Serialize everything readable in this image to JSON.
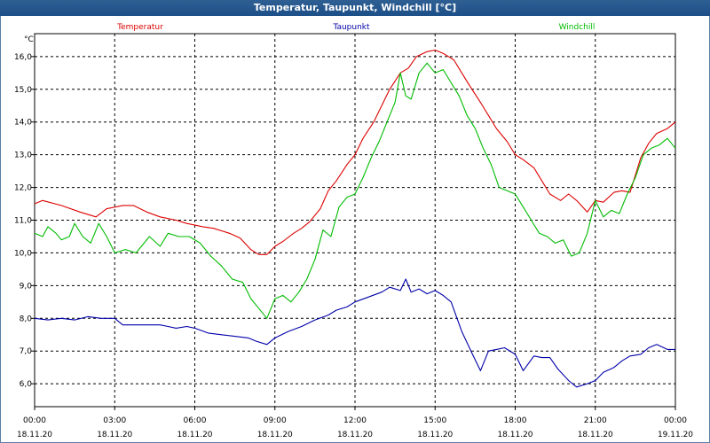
{
  "window": {
    "title": "Temperatur, Taupunkt, Windchill [°C]"
  },
  "chart_data": {
    "type": "line",
    "title": "Temperatur, Taupunkt, Windchill [°C]",
    "ylabel": "°C",
    "xlabel": "",
    "ylim": [
      5.3,
      16.7
    ],
    "xlim": [
      0,
      24
    ],
    "grid": true,
    "legend_position": "top",
    "yticks": [
      6.0,
      7.0,
      8.0,
      9.0,
      10.0,
      11.0,
      12.0,
      13.0,
      14.0,
      15.0,
      16.0
    ],
    "yticklabels": [
      "6,0",
      "7,0",
      "8,0",
      "9,0",
      "10,0",
      "11,0",
      "12,0",
      "13,0",
      "14,0",
      "15,0",
      "16,0"
    ],
    "xticks": [
      {
        "x": 0,
        "time": "00:00",
        "date": "18.11.20"
      },
      {
        "x": 3,
        "time": "03:00",
        "date": "18.11.20"
      },
      {
        "x": 6,
        "time": "06:00",
        "date": "18.11.20"
      },
      {
        "x": 9,
        "time": "09:00",
        "date": "18.11.20"
      },
      {
        "x": 12,
        "time": "12:00",
        "date": "18.11.20"
      },
      {
        "x": 15,
        "time": "15:00",
        "date": "18.11.20"
      },
      {
        "x": 18,
        "time": "18:00",
        "date": "18.11.20"
      },
      {
        "x": 21,
        "time": "21:00",
        "date": "18.11.20"
      },
      {
        "x": 24,
        "time": "00:00",
        "date": "19.11.20"
      }
    ],
    "series": [
      {
        "name": "Temperatur",
        "color": "#dd0000",
        "x": [
          0,
          0.3,
          1,
          1.7,
          2.3,
          2.7,
          3.3,
          3.7,
          4.2,
          4.7,
          5.3,
          5.7,
          6.3,
          6.7,
          7.3,
          7.7,
          8.1,
          8.4,
          8.7,
          9.0,
          9.3,
          9.7,
          10.0,
          10.3,
          10.7,
          11.0,
          11.3,
          11.7,
          12.0,
          12.3,
          12.7,
          13.0,
          13.3,
          13.7,
          14.0,
          14.3,
          14.7,
          15.0,
          15.3,
          15.7,
          16.0,
          16.3,
          16.7,
          17.0,
          17.3,
          17.7,
          18.0,
          18.3,
          18.7,
          19.0,
          19.3,
          19.7,
          20.0,
          20.3,
          20.7,
          21.0,
          21.3,
          21.7,
          22.0,
          22.3,
          22.7,
          23.0,
          23.3,
          23.7,
          24.0
        ],
        "values": [
          11.5,
          11.6,
          11.45,
          11.25,
          11.1,
          11.35,
          11.45,
          11.45,
          11.25,
          11.1,
          11.0,
          10.9,
          10.8,
          10.75,
          10.6,
          10.45,
          10.1,
          9.95,
          9.95,
          10.2,
          10.35,
          10.6,
          10.75,
          10.95,
          11.35,
          11.9,
          12.2,
          12.7,
          13.0,
          13.5,
          14.0,
          14.5,
          15.0,
          15.5,
          15.65,
          16.0,
          16.15,
          16.2,
          16.1,
          15.9,
          15.5,
          15.1,
          14.6,
          14.2,
          13.8,
          13.4,
          13.0,
          12.85,
          12.6,
          12.2,
          11.8,
          11.6,
          11.8,
          11.6,
          11.25,
          11.6,
          11.55,
          11.85,
          11.9,
          11.85,
          12.9,
          13.35,
          13.65,
          13.8,
          14.0
        ]
      },
      {
        "name": "Taupunkt",
        "color": "#0000aa",
        "x": [
          0,
          0.5,
          1,
          1.5,
          2,
          2.5,
          3,
          3.3,
          3.7,
          4.2,
          4.7,
          5.0,
          5.3,
          5.7,
          6.0,
          6.5,
          7.0,
          7.5,
          8.0,
          8.3,
          8.7,
          9.0,
          9.5,
          10.0,
          10.5,
          11.0,
          11.3,
          11.7,
          12.0,
          12.5,
          13.0,
          13.3,
          13.7,
          13.9,
          14.1,
          14.4,
          14.7,
          15.0,
          15.3,
          15.6,
          16.0,
          16.4,
          16.7,
          17.0,
          17.3,
          17.6,
          18.0,
          18.3,
          18.7,
          19.0,
          19.3,
          19.6,
          20.0,
          20.3,
          20.7,
          21.0,
          21.3,
          21.7,
          22.0,
          22.3,
          22.7,
          23.0,
          23.3,
          23.7,
          24.0
        ],
        "values": [
          8.0,
          7.95,
          8.0,
          7.95,
          8.05,
          8.0,
          8.0,
          7.8,
          7.8,
          7.8,
          7.8,
          7.75,
          7.7,
          7.75,
          7.7,
          7.55,
          7.5,
          7.45,
          7.4,
          7.3,
          7.2,
          7.4,
          7.6,
          7.75,
          7.95,
          8.1,
          8.25,
          8.35,
          8.5,
          8.65,
          8.8,
          8.95,
          8.85,
          9.2,
          8.8,
          8.9,
          8.75,
          8.85,
          8.7,
          8.5,
          7.6,
          6.9,
          6.4,
          7.0,
          7.05,
          7.1,
          6.9,
          6.4,
          6.85,
          6.8,
          6.8,
          6.45,
          6.1,
          5.9,
          6.0,
          6.1,
          6.35,
          6.5,
          6.7,
          6.85,
          6.9,
          7.1,
          7.2,
          7.05,
          7.05
        ]
      },
      {
        "name": "Windchill",
        "color": "#00bb00",
        "x": [
          0,
          0.3,
          0.5,
          0.8,
          1.0,
          1.3,
          1.5,
          1.8,
          2.1,
          2.4,
          2.7,
          3.0,
          3.4,
          3.8,
          4.3,
          4.7,
          5.0,
          5.4,
          5.8,
          6.2,
          6.6,
          7.0,
          7.4,
          7.8,
          8.1,
          8.4,
          8.7,
          9.0,
          9.3,
          9.6,
          9.9,
          10.2,
          10.5,
          10.8,
          11.1,
          11.4,
          11.7,
          12.0,
          12.3,
          12.6,
          12.9,
          13.2,
          13.5,
          13.7,
          13.9,
          14.1,
          14.4,
          14.7,
          15.0,
          15.3,
          15.6,
          15.9,
          16.2,
          16.5,
          16.8,
          17.1,
          17.4,
          17.7,
          18.0,
          18.3,
          18.6,
          18.9,
          19.2,
          19.5,
          19.8,
          20.1,
          20.4,
          20.7,
          21.0,
          21.3,
          21.6,
          21.9,
          22.2,
          22.5,
          22.8,
          23.1,
          23.4,
          23.7,
          24.0
        ],
        "values": [
          10.6,
          10.5,
          10.8,
          10.6,
          10.4,
          10.5,
          10.9,
          10.5,
          10.3,
          10.9,
          10.5,
          10.0,
          10.1,
          10.0,
          10.5,
          10.2,
          10.6,
          10.5,
          10.5,
          10.3,
          9.9,
          9.6,
          9.2,
          9.1,
          8.6,
          8.3,
          8.0,
          8.6,
          8.7,
          8.5,
          8.8,
          9.2,
          9.8,
          10.7,
          10.5,
          11.4,
          11.7,
          11.8,
          12.3,
          12.9,
          13.4,
          14.0,
          14.6,
          15.5,
          14.8,
          14.7,
          15.5,
          15.8,
          15.5,
          15.6,
          15.2,
          14.8,
          14.2,
          13.8,
          13.2,
          12.7,
          12.0,
          11.9,
          11.8,
          11.4,
          11.0,
          10.6,
          10.5,
          10.3,
          10.4,
          9.9,
          10.0,
          10.6,
          11.6,
          11.1,
          11.3,
          11.2,
          11.8,
          12.3,
          13.0,
          13.2,
          13.3,
          13.5,
          13.2
        ]
      }
    ]
  }
}
